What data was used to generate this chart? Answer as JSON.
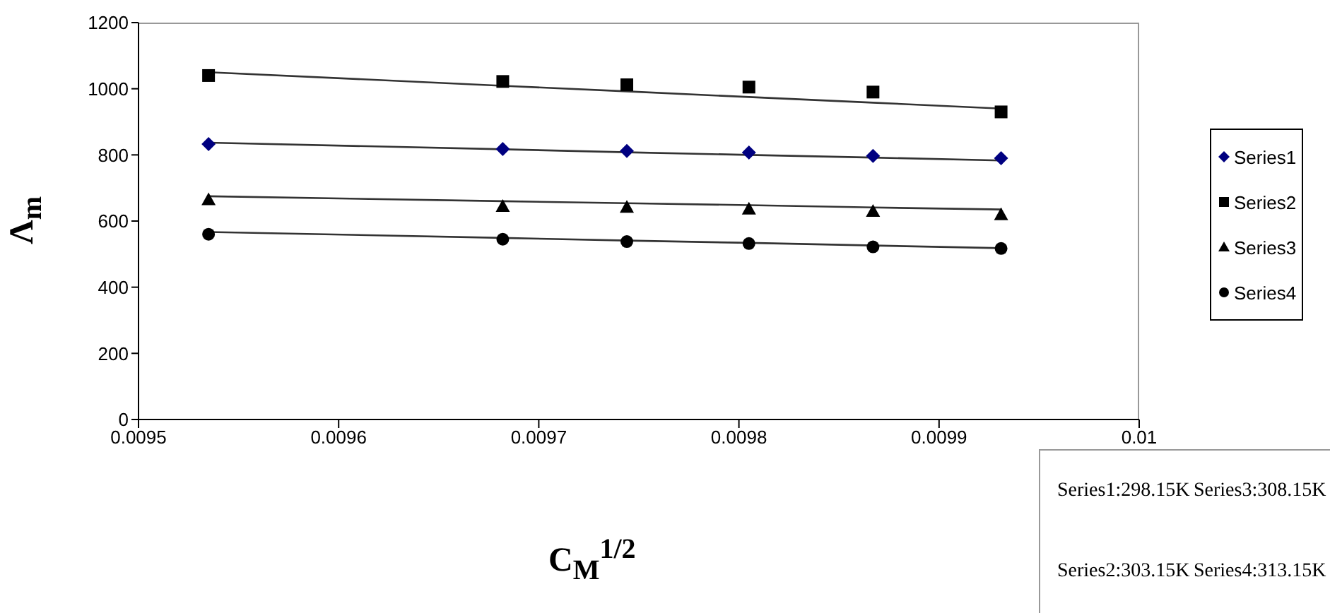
{
  "chart_data": {
    "type": "scatter",
    "xlabel": "C$_{M}$$^{1/2}$",
    "ylabel": "Λ$_{m}$",
    "x": [
      0.009535,
      0.009682,
      0.009744,
      0.009805,
      0.009867,
      0.009931
    ],
    "series": [
      {
        "name": "Series1",
        "color": "#000080",
        "marker": "diamond",
        "values": [
          833,
          818,
          812,
          807,
          797,
          790
        ]
      },
      {
        "name": "Series2",
        "color": "#000000",
        "marker": "square",
        "values": [
          1040,
          1022,
          1012,
          1005,
          990,
          930
        ]
      },
      {
        "name": "Series3",
        "color": "#000000",
        "marker": "triangle",
        "values": [
          665,
          645,
          642,
          637,
          630,
          620
        ]
      },
      {
        "name": "Series4",
        "color": "#000000",
        "marker": "circle",
        "values": [
          560,
          545,
          538,
          532,
          522,
          517
        ]
      },
      {
        "type": "line",
        "color": "#333333",
        "marker": "none",
        "values": [
          1050,
          1009,
          992,
          975,
          958,
          940
        ]
      },
      {
        "type": "line",
        "color": "#333333",
        "marker": "none",
        "values": [
          837,
          817,
          808,
          800,
          792,
          783
        ]
      },
      {
        "type": "line",
        "color": "#333333",
        "marker": "none",
        "values": [
          675,
          660,
          654,
          648,
          641,
          635
        ]
      },
      {
        "type": "line",
        "color": "#333333",
        "marker": "none",
        "values": [
          567,
          549,
          541,
          534,
          526,
          518
        ]
      }
    ],
    "xlim": [
      0.0095,
      0.01
    ],
    "xticks": [
      0.0095,
      0.0096,
      0.0097,
      0.0098,
      0.0099,
      0.01
    ],
    "ylim": [
      0,
      1200
    ],
    "yticks": [
      0,
      200,
      400,
      600,
      800,
      1000,
      1200
    ],
    "legend": "right",
    "annotations": [
      "Series1:298.15K",
      "Series3:308.15K",
      "Series2:303.15K",
      "Series4:313.15K"
    ]
  }
}
